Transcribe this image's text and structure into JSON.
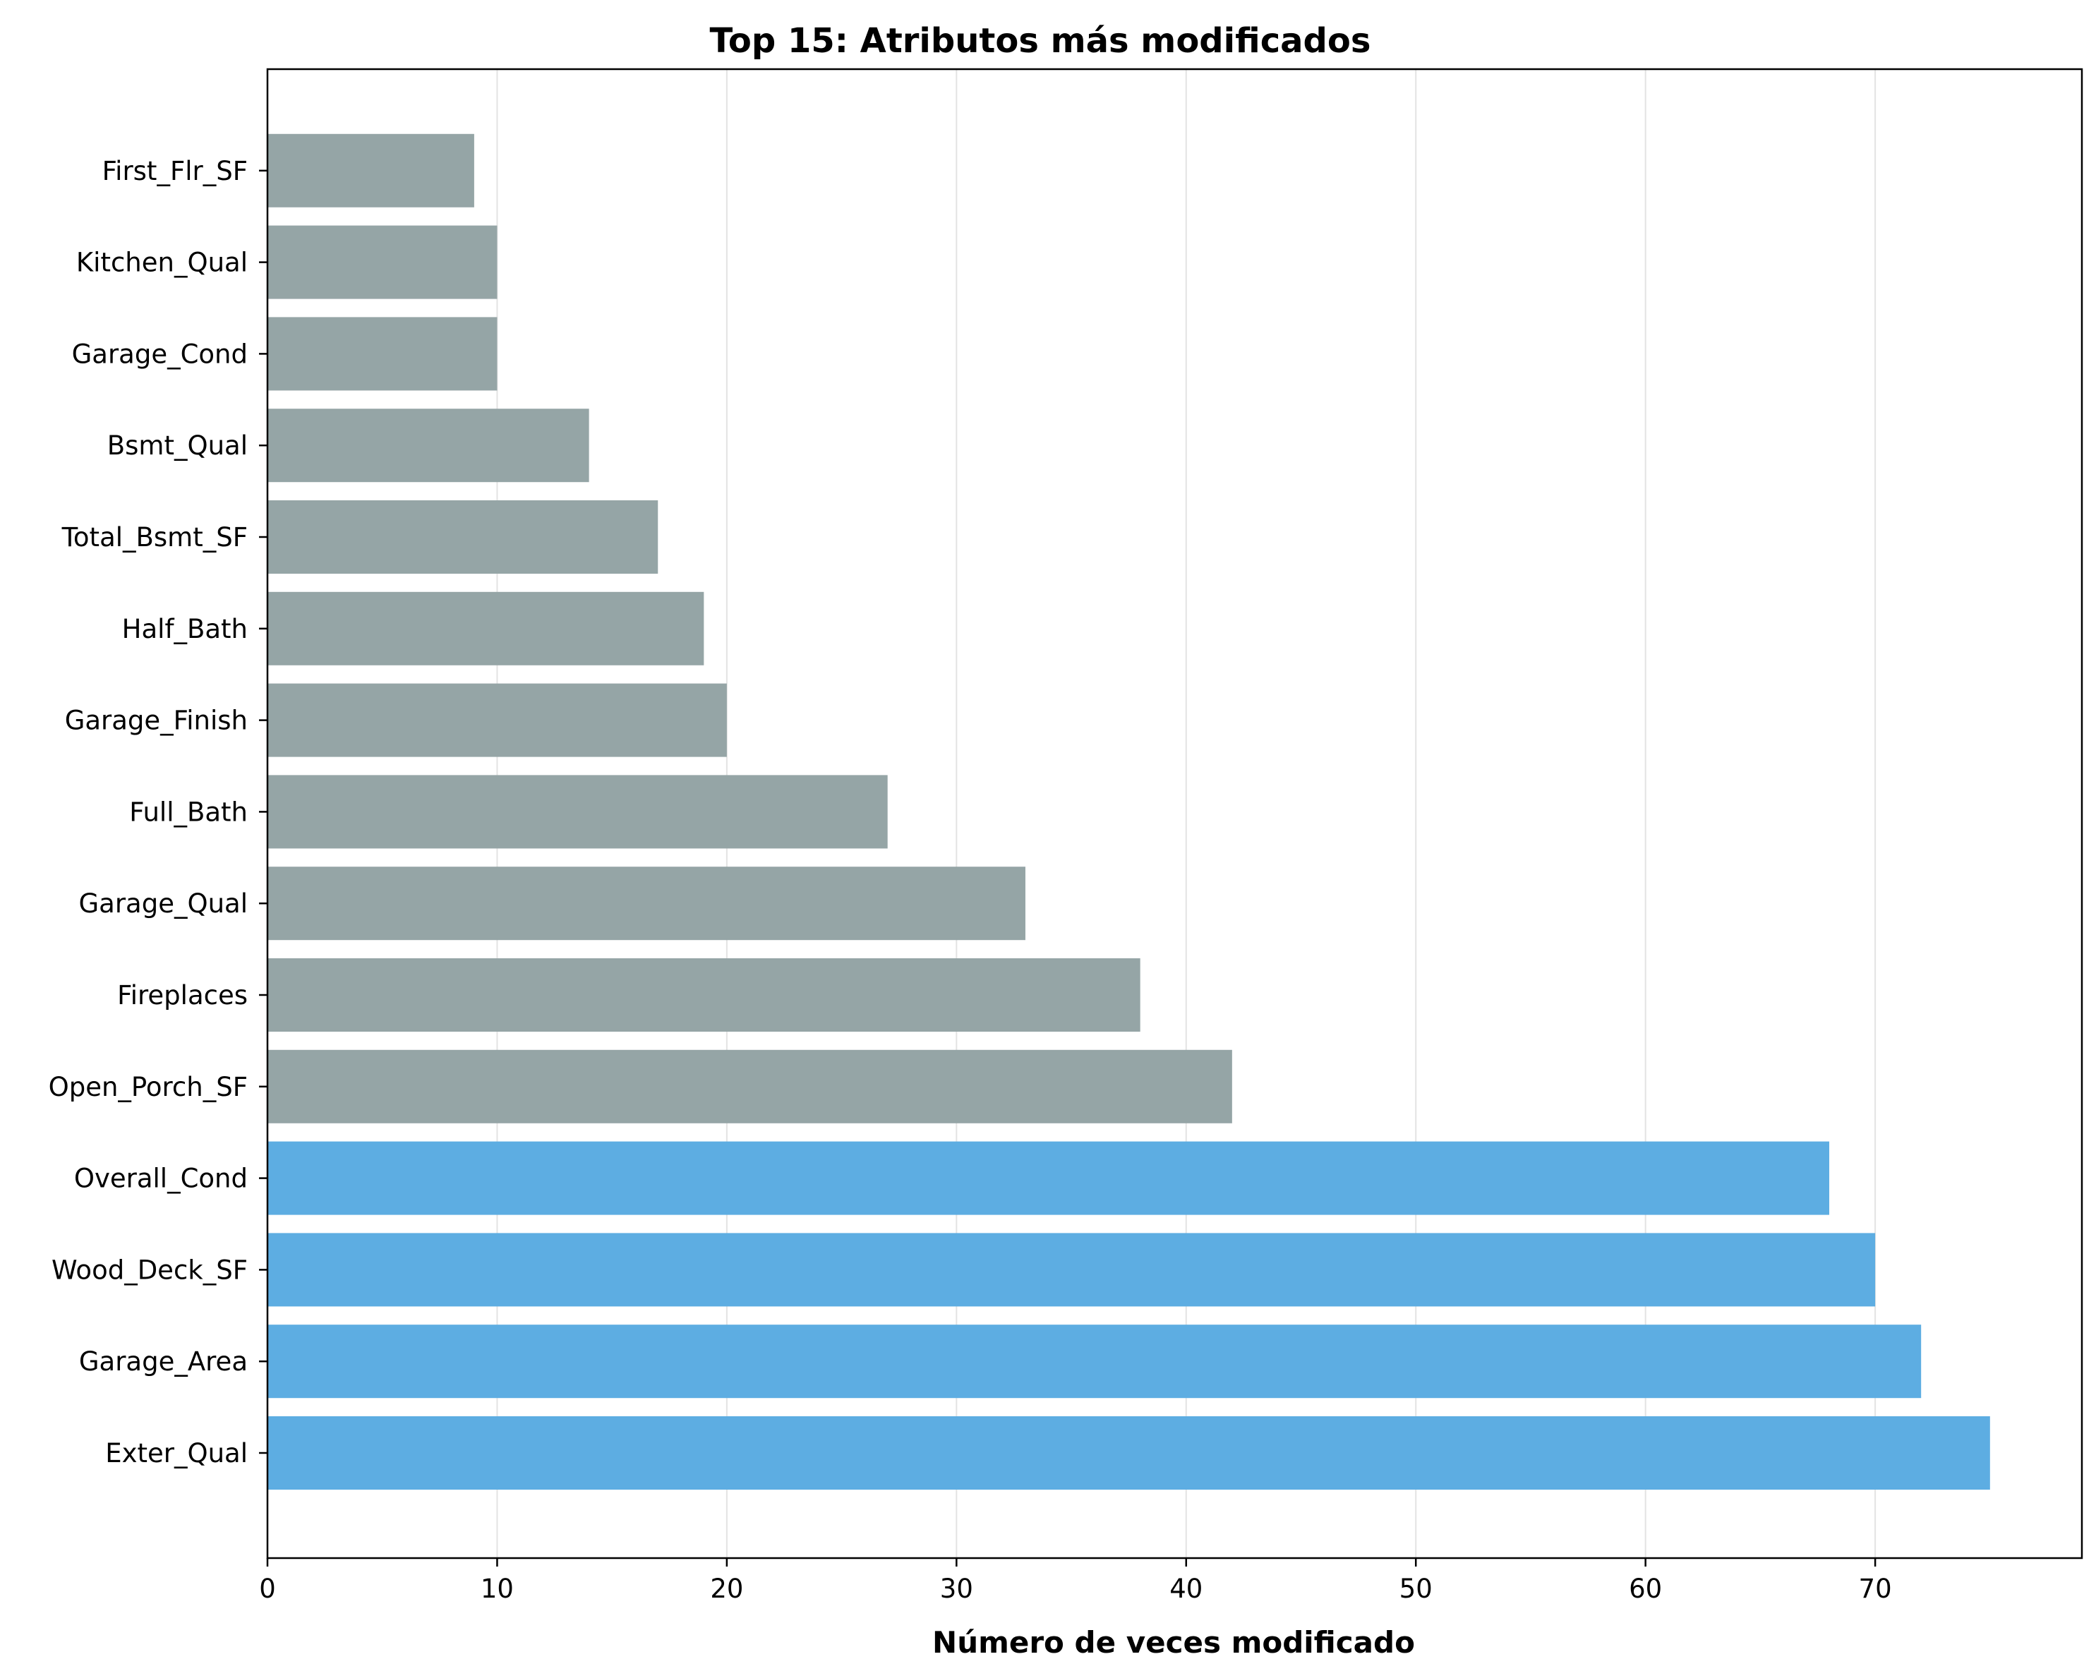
{
  "chart_data": {
    "type": "bar",
    "orientation": "horizontal",
    "title": "Top 15: Atributos más modificados",
    "xlabel": "Número de veces modificado",
    "ylabel": "",
    "xlim": [
      0,
      79
    ],
    "x_ticks": [
      0,
      10,
      20,
      30,
      40,
      50,
      60,
      70
    ],
    "grid": "vertical",
    "legend": "none",
    "categories": [
      "Exter_Qual",
      "Garage_Area",
      "Wood_Deck_SF",
      "Overall_Cond",
      "Open_Porch_SF",
      "Fireplaces",
      "Garage_Qual",
      "Full_Bath",
      "Garage_Finish",
      "Half_Bath",
      "Total_Bsmt_SF",
      "Bsmt_Qual",
      "Garage_Cond",
      "Kitchen_Qual",
      "First_Flr_SF"
    ],
    "values": [
      75,
      72,
      70,
      68,
      42,
      38,
      33,
      27,
      20,
      19,
      17,
      14,
      10,
      10,
      9
    ],
    "highlighted": [
      true,
      true,
      true,
      true,
      false,
      false,
      false,
      false,
      false,
      false,
      false,
      false,
      false,
      false,
      false
    ],
    "colors": {
      "highlight": "#5dade2",
      "default": "#95a5a6",
      "grid": "#e3e3e3",
      "axis": "#000000"
    }
  }
}
